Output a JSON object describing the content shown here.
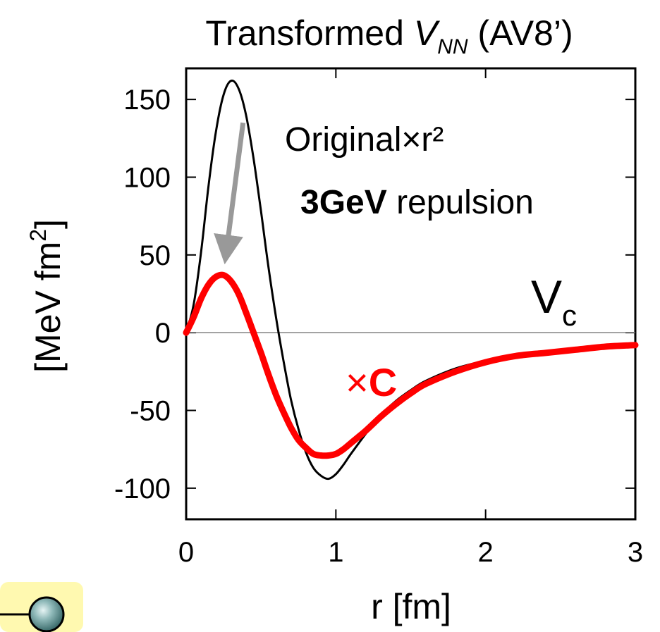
{
  "chart_data": {
    "type": "line",
    "title": {
      "prefix": "Transformed ",
      "symbol": "V",
      "subscript": "NN",
      "suffix": " (AV8’)"
    },
    "xlabel": "r [fm]",
    "ylabel": {
      "main": "[MeV fm",
      "superscript": "2",
      "close": "]"
    },
    "xlim": [
      0,
      3
    ],
    "ylim": [
      -120,
      170
    ],
    "xticks": [
      0,
      1,
      2,
      3
    ],
    "xtick_labels": [
      "0",
      "1",
      "2",
      "3"
    ],
    "yticks": [
      -100,
      -50,
      0,
      50,
      100,
      150
    ],
    "ytick_labels": [
      "-100",
      "-50",
      "0",
      "50",
      "100",
      "150"
    ],
    "zero_line": true,
    "series": [
      {
        "color": "#000000",
        "x": [
          0,
          0.05,
          0.1,
          0.15,
          0.2,
          0.25,
          0.3,
          0.35,
          0.4,
          0.45,
          0.5,
          0.55,
          0.6,
          0.65,
          0.7,
          0.75,
          0.8,
          0.85,
          0.9,
          0.95,
          1.0,
          1.05,
          1.1,
          1.2,
          1.3,
          1.4,
          1.5,
          1.6,
          1.8,
          2.0,
          2.2,
          2.4,
          2.6,
          2.8,
          3.0
        ],
        "values": [
          0,
          18,
          52,
          95,
          130,
          153,
          162,
          157,
          140,
          112,
          78,
          42,
          10,
          -18,
          -43,
          -62,
          -77,
          -87,
          -92,
          -94,
          -91,
          -85,
          -78,
          -65,
          -53,
          -44,
          -37,
          -31,
          -23,
          -18,
          -14,
          -12,
          -10,
          -9,
          -8
        ]
      },
      {
        "color": "#ff0000",
        "x": [
          0,
          0.05,
          0.1,
          0.15,
          0.2,
          0.25,
          0.3,
          0.35,
          0.4,
          0.45,
          0.5,
          0.55,
          0.6,
          0.65,
          0.7,
          0.75,
          0.8,
          0.85,
          0.9,
          0.95,
          1.0,
          1.05,
          1.1,
          1.2,
          1.3,
          1.4,
          1.5,
          1.6,
          1.8,
          2.0,
          2.2,
          2.4,
          2.6,
          2.8,
          3.0
        ],
        "values": [
          0,
          10,
          22,
          31,
          36,
          37,
          33,
          25,
          13,
          0,
          -13,
          -27,
          -40,
          -51,
          -61,
          -69,
          -74,
          -78,
          -79,
          -79,
          -78,
          -75,
          -71,
          -63,
          -54,
          -46,
          -39,
          -33,
          -25,
          -19,
          -15,
          -13,
          -11,
          -9,
          -8
        ]
      }
    ],
    "annotations": {
      "original_label": "Original×r²",
      "repulsion_bold": "3GeV",
      "repulsion_rest": " repulsion",
      "vc_main": "V",
      "vc_sub": "c",
      "times_c_symbol": "×",
      "times_c_bold": "C"
    },
    "arrow": {
      "from": [
        0.38,
        135
      ],
      "to": [
        0.27,
        47
      ],
      "color": "#999999"
    },
    "colors": {
      "original": "#000000",
      "transformed": "#ff0000",
      "arrow": "#999999",
      "zero_line": "#808080",
      "badge": "#fff9b0"
    },
    "corner_icon": "sphere-node-icon"
  }
}
